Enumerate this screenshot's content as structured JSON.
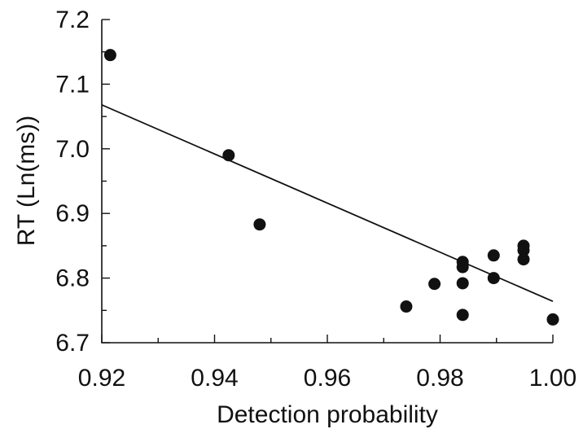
{
  "chart_data": {
    "type": "scatter",
    "xlabel": "Detection probability",
    "ylabel": "RT (Ln(ms))",
    "xlim": [
      0.92,
      1.0
    ],
    "ylim": [
      6.7,
      7.2
    ],
    "x_ticks": [
      "0.92",
      "0.94",
      "0.96",
      "0.98",
      "1.00"
    ],
    "y_ticks": [
      "6.7",
      "6.8",
      "6.9",
      "7.0",
      "7.1",
      "7.2"
    ],
    "grid": false,
    "points": [
      {
        "x": 0.9215,
        "y": 7.145
      },
      {
        "x": 0.9425,
        "y": 6.99
      },
      {
        "x": 0.948,
        "y": 6.883
      },
      {
        "x": 0.974,
        "y": 6.756
      },
      {
        "x": 0.979,
        "y": 6.791
      },
      {
        "x": 0.984,
        "y": 6.825
      },
      {
        "x": 0.984,
        "y": 6.817
      },
      {
        "x": 0.984,
        "y": 6.792
      },
      {
        "x": 0.984,
        "y": 6.743
      },
      {
        "x": 0.9895,
        "y": 6.835
      },
      {
        "x": 0.9895,
        "y": 6.8
      },
      {
        "x": 0.9948,
        "y": 6.85
      },
      {
        "x": 0.9948,
        "y": 6.843
      },
      {
        "x": 0.9948,
        "y": 6.829
      },
      {
        "x": 1.0,
        "y": 6.736
      }
    ],
    "fit_line": {
      "x": [
        0.92,
        1.0
      ],
      "y": [
        7.068,
        6.764
      ]
    }
  }
}
